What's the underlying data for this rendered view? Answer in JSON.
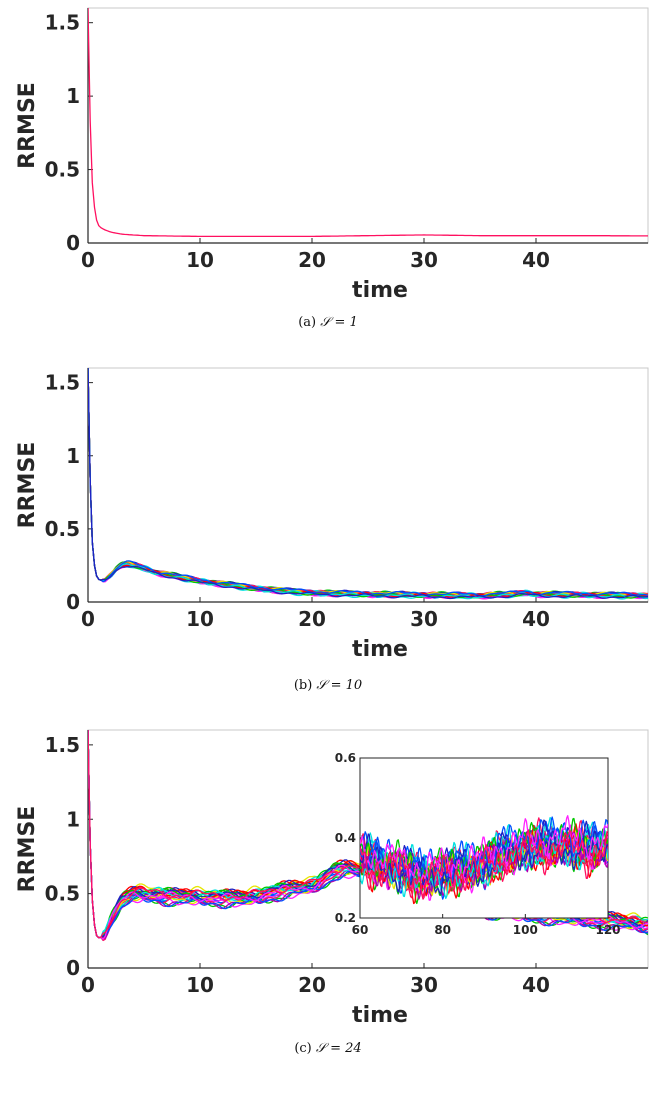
{
  "chart_data": [
    {
      "type": "line",
      "caption": "(a)",
      "caption_math": "𝒮 = 1",
      "xlabel": "time",
      "ylabel": "RRMSE",
      "xlim": [
        0,
        50
      ],
      "ylim": [
        0,
        1.6
      ],
      "xticks": [
        0,
        10,
        20,
        30,
        40
      ],
      "yticks": [
        0,
        0.5,
        1,
        1.5
      ],
      "ytick_labels": [
        "0",
        "0.5",
        "1",
        "1.5"
      ],
      "grid": false,
      "n_members": 1,
      "colors": [
        "#ff1060"
      ],
      "mean_curve": {
        "x": [
          0,
          0.1,
          0.2,
          0.35,
          0.5,
          0.75,
          1,
          1.5,
          2,
          3,
          4,
          5,
          7,
          10,
          15,
          20,
          25,
          30,
          35,
          40,
          45,
          50
        ],
        "y": [
          1.6,
          1.2,
          0.8,
          0.45,
          0.28,
          0.16,
          0.11,
          0.09,
          0.075,
          0.06,
          0.055,
          0.05,
          0.048,
          0.045,
          0.045,
          0.045,
          0.05,
          0.055,
          0.05,
          0.05,
          0.05,
          0.048
        ]
      },
      "spread": 0
    },
    {
      "type": "line",
      "caption": "(b)",
      "caption_math": "𝒮 = 10",
      "xlabel": "time",
      "ylabel": "RRMSE",
      "xlim": [
        0,
        50
      ],
      "ylim": [
        0,
        1.6
      ],
      "xticks": [
        0,
        10,
        20,
        30,
        40
      ],
      "yticks": [
        0,
        0.5,
        1,
        1.5
      ],
      "ytick_labels": [
        "0",
        "0.5",
        "1",
        "1.5"
      ],
      "grid": false,
      "n_members": 20,
      "colors": [
        "#00c800",
        "#00e0e0",
        "#0050ff",
        "#2020c0",
        "#ff20ff",
        "#ff1060",
        "#e6e600",
        "#ff0000"
      ],
      "mean_curve": {
        "x": [
          0,
          0.1,
          0.2,
          0.35,
          0.5,
          0.75,
          1,
          1.5,
          2,
          2.5,
          3,
          3.5,
          4,
          5,
          6,
          8,
          10,
          12,
          15,
          18,
          20,
          25,
          30,
          35,
          38,
          39,
          40,
          45,
          50
        ],
        "y": [
          1.6,
          1.2,
          0.8,
          0.45,
          0.28,
          0.18,
          0.15,
          0.15,
          0.18,
          0.22,
          0.25,
          0.26,
          0.25,
          0.23,
          0.2,
          0.17,
          0.14,
          0.12,
          0.09,
          0.07,
          0.06,
          0.05,
          0.045,
          0.04,
          0.05,
          0.06,
          0.05,
          0.045,
          0.04
        ]
      },
      "spread": 0.015
    },
    {
      "type": "line",
      "caption": "(c)",
      "caption_math": "𝒮 = 24",
      "xlabel": "time",
      "ylabel": "RRMSE",
      "xlim": [
        0,
        50
      ],
      "ylim": [
        0,
        1.6
      ],
      "xticks": [
        0,
        10,
        20,
        30,
        40
      ],
      "yticks": [
        0,
        0.5,
        1,
        1.5
      ],
      "ytick_labels": [
        "0",
        "0.5",
        "1",
        "1.5"
      ],
      "grid": false,
      "n_members": 24,
      "colors": [
        "#00c800",
        "#00e0e0",
        "#0050ff",
        "#2020c0",
        "#ff20ff",
        "#ff1060",
        "#e6e600",
        "#ff0000",
        "#b000b0"
      ],
      "mean_curve": {
        "x": [
          0,
          0.1,
          0.2,
          0.35,
          0.5,
          0.75,
          1,
          1.5,
          2,
          3,
          4,
          5,
          6,
          8,
          10,
          12,
          14,
          16,
          18,
          20,
          21,
          22,
          23,
          24,
          25,
          26,
          27,
          28,
          30,
          32,
          35,
          38,
          40,
          42,
          45,
          48,
          50
        ],
        "y": [
          1.6,
          1.2,
          0.8,
          0.5,
          0.32,
          0.22,
          0.2,
          0.22,
          0.32,
          0.45,
          0.5,
          0.5,
          0.49,
          0.48,
          0.48,
          0.47,
          0.47,
          0.5,
          0.53,
          0.55,
          0.6,
          0.65,
          0.67,
          0.66,
          0.63,
          0.6,
          0.57,
          0.52,
          0.46,
          0.42,
          0.4,
          0.38,
          0.36,
          0.35,
          0.33,
          0.31,
          0.29
        ]
      },
      "spread": 0.04,
      "inset": {
        "xlim": [
          60,
          120
        ],
        "ylim": [
          0.2,
          0.6
        ],
        "xticks": [
          60,
          80,
          100,
          120
        ],
        "yticks": [
          0.2,
          0.4,
          0.6
        ],
        "ytick_labels": [
          "0.2",
          "0.4",
          "0.6"
        ],
        "mean_curve": {
          "x": [
            60,
            65,
            70,
            75,
            80,
            85,
            90,
            95,
            100,
            105,
            110,
            115,
            120
          ],
          "y": [
            0.35,
            0.33,
            0.32,
            0.3,
            0.31,
            0.32,
            0.33,
            0.36,
            0.37,
            0.38,
            0.38,
            0.37,
            0.38
          ]
        },
        "spread": 0.045
      }
    }
  ]
}
